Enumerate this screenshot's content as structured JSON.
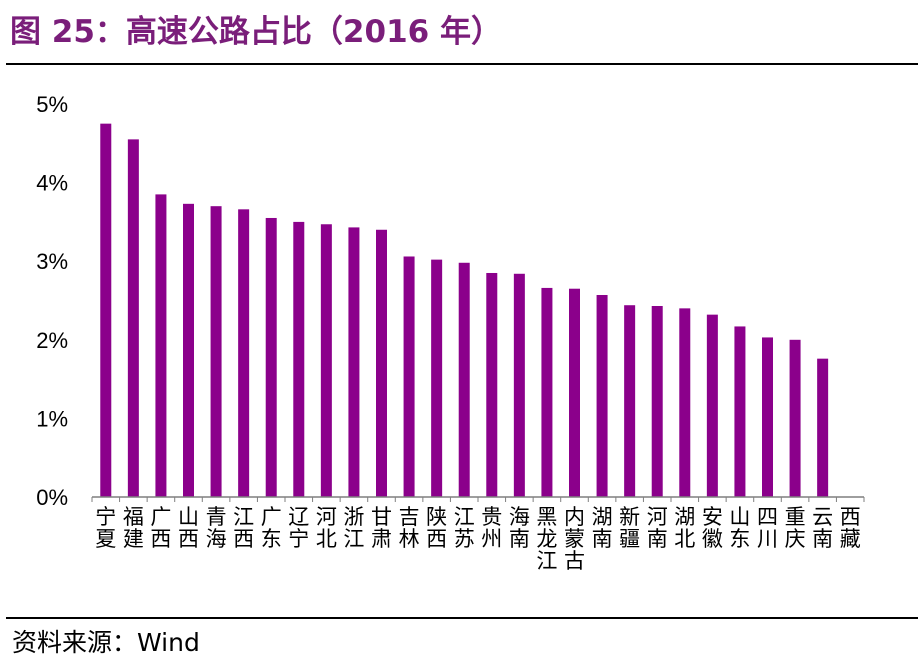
{
  "header": {
    "title": "图 25：高速公路占比（2016 年）"
  },
  "footer": {
    "source": "资料来源：Wind"
  },
  "colors": {
    "bar": "#8b008b",
    "title": "#7a1e7a",
    "axis": "#7f7f7f"
  },
  "chart_data": {
    "type": "bar",
    "title": "",
    "xlabel": "",
    "ylabel": "",
    "ylim": [
      0,
      5
    ],
    "yticks": [
      "0%",
      "1%",
      "2%",
      "3%",
      "4%",
      "5%"
    ],
    "categories": [
      "宁夏",
      "福建",
      "广西",
      "山西",
      "青海",
      "江西",
      "广东",
      "辽宁",
      "河北",
      "浙江",
      "甘肃",
      "吉林",
      "陕西",
      "江苏",
      "贵州",
      "海南",
      "黑龙江",
      "内蒙古",
      "湖南",
      "新疆",
      "河南",
      "湖北",
      "安徽",
      "山东",
      "四川",
      "重庆",
      "云南",
      "西藏"
    ],
    "values": [
      4.75,
      4.55,
      3.85,
      3.73,
      3.7,
      3.66,
      3.55,
      3.5,
      3.47,
      3.43,
      3.4,
      3.06,
      3.02,
      2.98,
      2.85,
      2.84,
      2.66,
      2.65,
      2.57,
      2.44,
      2.43,
      2.4,
      2.32,
      2.17,
      2.03,
      2.0,
      1.76,
      0
    ]
  }
}
